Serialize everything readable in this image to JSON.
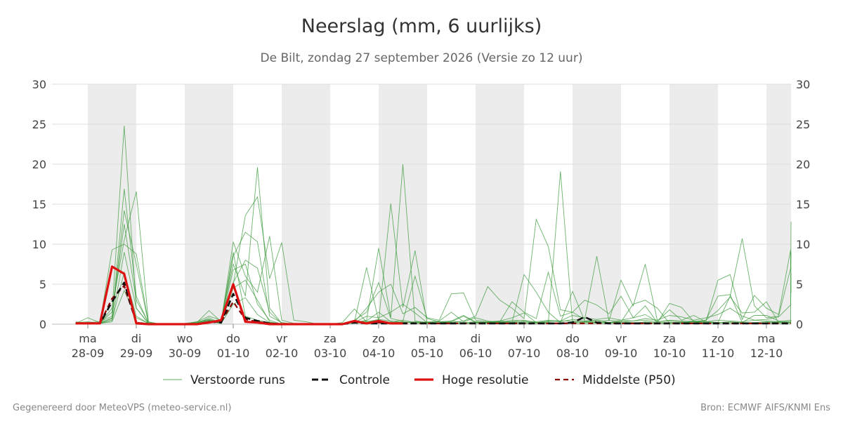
{
  "chart_data": {
    "type": "line",
    "title": "Neerslag (mm, 6 uurlijks)",
    "subtitle": "De Bilt, zondag 27 september 2026 (Versie zo 12 uur)",
    "ylim": [
      0,
      30
    ],
    "yticks": [
      0,
      5,
      10,
      15,
      20,
      25,
      30
    ],
    "x_start": "2026-09-28T00:00",
    "x_step_hours": 6,
    "day_labels": [
      {
        "day": "ma",
        "date": "28-09"
      },
      {
        "day": "di",
        "date": "29-09"
      },
      {
        "day": "wo",
        "date": "30-09"
      },
      {
        "day": "do",
        "date": "01-10"
      },
      {
        "day": "vr",
        "date": "02-10"
      },
      {
        "day": "za",
        "date": "03-10"
      },
      {
        "day": "zo",
        "date": "04-10"
      },
      {
        "day": "ma",
        "date": "05-10"
      },
      {
        "day": "di",
        "date": "06-10"
      },
      {
        "day": "wo",
        "date": "07-10"
      },
      {
        "day": "do",
        "date": "08-10"
      },
      {
        "day": "vr",
        "date": "09-10"
      },
      {
        "day": "za",
        "date": "10-10"
      },
      {
        "day": "zo",
        "date": "11-10"
      },
      {
        "day": "ma",
        "date": "12-10"
      }
    ],
    "grid": true,
    "legend_position": "bottom",
    "colors": {
      "perturbed": "#3a9a3a",
      "control": "#111111",
      "high_res": "#dd1111",
      "median": "#8b0000",
      "band": "#ececec"
    },
    "series": [
      {
        "name": "Verstoorde runs",
        "style": "thin-green",
        "runs": [
          [
            0.3,
            0.1,
            0.2,
            1.5,
            24.8,
            2.0,
            0.1,
            0,
            0,
            0,
            0.2,
            0.5,
            0.3,
            9.0,
            1.0,
            0.5,
            0.2,
            0,
            0,
            0,
            0,
            0,
            0.2,
            1.9,
            0.3,
            0.5,
            0.2,
            0.3,
            0.1,
            0.1,
            0.1,
            0.2,
            0.1,
            0.1,
            0.2,
            0.1,
            0.1,
            0.1,
            0.1,
            0.1,
            0.1,
            0.1,
            0.1,
            0.1,
            0.1,
            0.1,
            0.1,
            0.2,
            0.1,
            0.1,
            0.1,
            0.1,
            0.1,
            0.1,
            0.1,
            0.1,
            0.1,
            0.1,
            0.1,
            0.1,
            0.1
          ],
          [
            0.2,
            0.3,
            0.1,
            2.0,
            10.5,
            16.6,
            0.3,
            0,
            0,
            0.1,
            0.3,
            1.0,
            0.5,
            7.5,
            3.5,
            19.6,
            2.0,
            0.1,
            0,
            0,
            0,
            0,
            0.1,
            0.2,
            0.5,
            9.5,
            0.8,
            20.0,
            0.4,
            0.2,
            0.3,
            0.2,
            0.1,
            0.2,
            0.2,
            0.3,
            0.3,
            0.2,
            0.1,
            0.2,
            19.1,
            0.2,
            0.3,
            0.2,
            0.2,
            0.2,
            0.1,
            0.3,
            0.2,
            0.2,
            0.2,
            0.2,
            0.3,
            0.2,
            0.2,
            0.2,
            0.1,
            0.2,
            0.3,
            0.2,
            12.8
          ],
          [
            0.1,
            0.8,
            0.2,
            9.3,
            10.0,
            8.8,
            0.2,
            0,
            0,
            0,
            0.2,
            1.7,
            0.3,
            5.0,
            13.6,
            15.9,
            5.7,
            10.2,
            0.5,
            0.3,
            0,
            0,
            0,
            0.3,
            7.1,
            0.4,
            15.1,
            2.1,
            9.2,
            0.2,
            0.1,
            0.4,
            1.1,
            0.3,
            0.2,
            0.2,
            0.2,
            6.2,
            4.0,
            1.5,
            0.2,
            4.1,
            0.4,
            0.5,
            0.2,
            0.3,
            2.5,
            3.0,
            2.0,
            0.1,
            0.2,
            0.3,
            0.5,
            1.7,
            3.4,
            1.4,
            1.5,
            2.8,
            0.2,
            0.2,
            0.1
          ],
          [
            0.2,
            0.1,
            0.1,
            0.8,
            14.2,
            7.5,
            0.1,
            0,
            0,
            0,
            0.1,
            0.6,
            0.2,
            10.3,
            6.0,
            4.0,
            11.0,
            0.5,
            0.1,
            0,
            0,
            0,
            0.1,
            0.5,
            1.5,
            5.2,
            0.7,
            0.4,
            6.0,
            0.7,
            0.3,
            0.2,
            0.4,
            1.0,
            4.7,
            3.0,
            2.0,
            0.7,
            13.1,
            9.7,
            1.8,
            1.5,
            0.6,
            8.5,
            0.4,
            5.5,
            2.3,
            7.5,
            0.4,
            1.8,
            0.5,
            1.1,
            0.3,
            5.5,
            6.2,
            0.6,
            3.6,
            2.0,
            1.2,
            9.3,
            3.9
          ],
          [
            0.1,
            0.2,
            0.3,
            1.0,
            12.5,
            3.0,
            0.2,
            0,
            0,
            0,
            0.1,
            0.8,
            0.1,
            8.5,
            11.5,
            10.3,
            1.0,
            0.2,
            0,
            0,
            0,
            0,
            0.1,
            0.3,
            2.0,
            4.0,
            5.0,
            1.3,
            2.1,
            0.8,
            0.5,
            3.8,
            3.9,
            0.5,
            0.3,
            0.3,
            2.8,
            1.5,
            0.7,
            6.5,
            1.0,
            1.5,
            3.0,
            2.4,
            1.3,
            3.5,
            0.8,
            2.3,
            0.2,
            2.6,
            2.1,
            0.3,
            0.3,
            0.2,
            3.5,
            10.7,
            2.3,
            0.8,
            1.0,
            7.0,
            9.0
          ],
          [
            0.1,
            0.1,
            0.1,
            0.5,
            9.0,
            2.0,
            0.1,
            0,
            0,
            0,
            0.2,
            0.5,
            0.2,
            6.8,
            7.5,
            2.5,
            0.5,
            0,
            0,
            0,
            0,
            0,
            0.1,
            0.2,
            1.0,
            0.8,
            1.5,
            2.5,
            1.4,
            0.2,
            0.1,
            0.3,
            1.0,
            0.2,
            0.3,
            0.4,
            0.8,
            1.4,
            0.2,
            0.3,
            0.4,
            0.4,
            0.3,
            0.5,
            0.2,
            0.5,
            0.8,
            1.2,
            0.3,
            0.5,
            0.4,
            0.3,
            0.5,
            3.5,
            3.7,
            0.2,
            1.1,
            1.1,
            0.4,
            0.3,
            0.5
          ],
          [
            0.2,
            0.1,
            0.2,
            0.7,
            16.9,
            3.5,
            0.1,
            0,
            0,
            0,
            0.3,
            0.6,
            0.1,
            5.2,
            8.0,
            7.0,
            1.5,
            0.1,
            0,
            0,
            0,
            0,
            0.1,
            0.2,
            0.4,
            1.5,
            0.3,
            0.5,
            0.2,
            0.3,
            0.4,
            1.5,
            0.3,
            0.8,
            0.4,
            0.2,
            0.5,
            0.4,
            0.3,
            0.5,
            0.4,
            1.1,
            0.8,
            0.6,
            0.8,
            0.5,
            0.4,
            0.7,
            0.5,
            1.1,
            0.9,
            0.5,
            0.8,
            1.2,
            2.0,
            1.0,
            0.5,
            0.6,
            0.9,
            2.4,
            6.4
          ],
          [
            0.1,
            0.1,
            0.1,
            0.5,
            6.5,
            1.0,
            0.1,
            0,
            0,
            0,
            0.1,
            0.4,
            0.1,
            4.5,
            5.5,
            3.0,
            0.3,
            0,
            0,
            0,
            0,
            0,
            0.1,
            0.2,
            0.3,
            0.6,
            0.4,
            0.2,
            0.3,
            0.2,
            0.3,
            0.4,
            0.2,
            0.3,
            0.2,
            0.4,
            0.3,
            0.5,
            0.2,
            0.4,
            0.3,
            0.6,
            0.4,
            0.3,
            0.5,
            0.3,
            0.4,
            0.5,
            0.3,
            0.4,
            0.3,
            0.4,
            0.3,
            0.5,
            0.4,
            0.3,
            0.5,
            0.4,
            0.3,
            0.5,
            0.4
          ],
          [
            0.1,
            0.2,
            0.1,
            0.3,
            4.2,
            0.8,
            0.1,
            0,
            0,
            0,
            0.1,
            0.3,
            0.1,
            2.5,
            3.3,
            1.2,
            0.2,
            0,
            0,
            0,
            0,
            0,
            0.1,
            0.1,
            0.2,
            0.3,
            0.2,
            0.3,
            0.2,
            0.1,
            0.2,
            0.2,
            0.1,
            0.2,
            0.1,
            0.2,
            0.2,
            0.3,
            0.2,
            0.2,
            0.1,
            0.3,
            0.2,
            0.2,
            0.2,
            0.3,
            0.2,
            0.2,
            0.1,
            0.2,
            0.2,
            0.3,
            0.2,
            0.2,
            0.3,
            0.2,
            0.2,
            0.3,
            0.2,
            0.2,
            0.2
          ]
        ]
      },
      {
        "name": "Controle",
        "style": "dashed-black",
        "values": [
          0.1,
          0.1,
          0.1,
          2.8,
          5.2,
          0.2,
          0,
          0,
          0,
          0,
          0,
          0.3,
          0.2,
          3.8,
          0.8,
          0.4,
          0.1,
          0,
          0,
          0,
          0,
          0,
          0,
          0.2,
          0.1,
          0.1,
          0.1,
          0.1,
          0.1,
          0.1,
          0.1,
          0.1,
          0.1,
          0.1,
          0.1,
          0.1,
          0.1,
          0.1,
          0.1,
          0.1,
          0.1,
          0.2,
          0.9,
          0.2,
          0.1,
          0.1,
          0.1,
          0.1,
          0.1,
          0.1,
          0.1,
          0.1,
          0.1,
          0.1,
          0.1,
          0.1,
          0.1,
          0.1,
          0.1,
          0.1,
          0.1
        ]
      },
      {
        "name": "Hoge resolutie",
        "style": "thick-red",
        "values": [
          0.1,
          0.1,
          0.1,
          7.2,
          6.3,
          0.1,
          0,
          0,
          0,
          0,
          0,
          0.2,
          0.5,
          5.0,
          0.3,
          0.2,
          0,
          0,
          0,
          0,
          0,
          0,
          0,
          0.4,
          0.1,
          0.4,
          0.1,
          0.1
        ]
      },
      {
        "name": "Middelste (P50)",
        "style": "dashed-darkred",
        "values": [
          0.1,
          0.1,
          0.1,
          3.2,
          4.8,
          0.2,
          0,
          0,
          0,
          0,
          0,
          0.3,
          0.3,
          2.8,
          0.6,
          0.3,
          0.1,
          0,
          0,
          0,
          0,
          0,
          0,
          0.2,
          0.1,
          0.2,
          0.1,
          0.1,
          0.1,
          0.1,
          0.1,
          0.1,
          0.1,
          0.1,
          0.1,
          0.1,
          0.1,
          0.1,
          0.1,
          0.1,
          0.1,
          0.1,
          0.1,
          0.1,
          0.1,
          0.1,
          0.1,
          0.1,
          0.1,
          0.1,
          0.1,
          0.1,
          0.1,
          0.1,
          0.1,
          0.1,
          0.1,
          0.1,
          0.1,
          0.1,
          0.1
        ]
      }
    ]
  },
  "footer": {
    "left": "Gegenereerd door MeteoVPS (meteo-service.nl)",
    "right": "Bron: ECMWF AIFS/KNMI Ens"
  }
}
